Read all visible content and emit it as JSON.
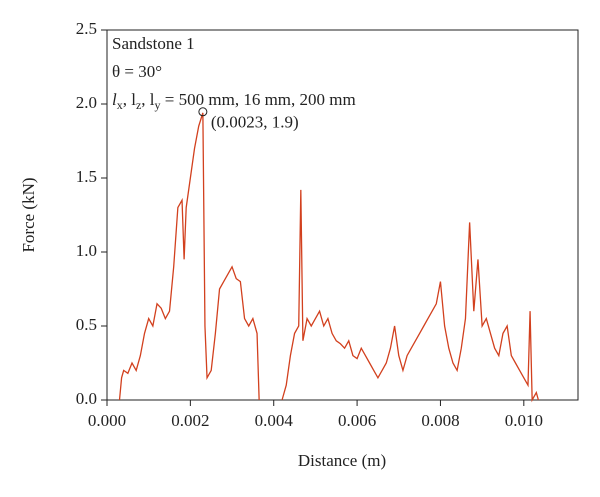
{
  "chart_data": {
    "type": "line",
    "xlabel": "Distance (m)",
    "ylabel": "Force (kN)",
    "text_lines": [
      "Sandstone 1",
      "θ = 30°"
    ],
    "text_parts": [
      "l",
      "x",
      ", l",
      "z",
      ", l",
      "y",
      " = 500 mm, 16 mm, 200 mm"
    ],
    "annotation": {
      "x": 0.0023,
      "y": 1.9,
      "label": "(0.0023, 1.9)"
    },
    "xlim": [
      0,
      0.0113
    ],
    "ylim": [
      0,
      2.5
    ],
    "xticks": [
      {
        "value": 0,
        "label": "0.000"
      },
      {
        "value": 0.002,
        "label": "0.002"
      },
      {
        "value": 0.004,
        "label": "0.004"
      },
      {
        "value": 0.006,
        "label": "0.006"
      },
      {
        "value": 0.008,
        "label": "0.008"
      },
      {
        "value": 0.01,
        "label": "0.010"
      }
    ],
    "yticks": [
      {
        "value": 0,
        "label": "0.0"
      },
      0.5,
      {
        "value": 1,
        "label": "1.0"
      },
      1.5,
      {
        "value": 2,
        "label": "2.0"
      },
      2.5
    ],
    "series": [
      {
        "color": "#d2401e",
        "x": [
          0.0003,
          0.00035,
          0.0004,
          0.0005,
          0.0006,
          0.0007,
          0.0008,
          0.0009,
          0.001,
          0.0011,
          0.0012,
          0.0013,
          0.0014,
          0.0015,
          0.0016,
          0.0017,
          0.0018,
          0.00185,
          0.0019,
          0.002,
          0.0021,
          0.0022,
          0.0023,
          0.00235,
          0.0024,
          0.0025,
          0.0026,
          0.0027,
          0.0028,
          0.0029,
          0.003,
          0.0031,
          0.0032,
          0.0033,
          0.0034,
          0.0035,
          0.0036,
          0.00365,
          0.004,
          0.0042,
          0.0043,
          0.0044,
          0.0045,
          0.0046,
          0.00465,
          0.0047,
          0.0048,
          0.0049,
          0.005,
          0.0051,
          0.0052,
          0.0053,
          0.0054,
          0.0055,
          0.0056,
          0.0057,
          0.0058,
          0.0059,
          0.006,
          0.0061,
          0.0062,
          0.0063,
          0.0064,
          0.0065,
          0.0066,
          0.0067,
          0.0068,
          0.0069,
          0.007,
          0.0071,
          0.0072,
          0.0073,
          0.0074,
          0.0075,
          0.0076,
          0.0077,
          0.0078,
          0.0079,
          0.008,
          0.0081,
          0.0082,
          0.0083,
          0.0084,
          0.0085,
          0.0086,
          0.0087,
          0.0088,
          0.0089,
          0.009,
          0.0091,
          0.0092,
          0.0093,
          0.0094,
          0.0095,
          0.0096,
          0.0097,
          0.0098,
          0.0099,
          0.01,
          0.0101,
          0.01015,
          0.0102,
          0.0103,
          0.01035
        ],
        "values": [
          0,
          0.15,
          0.2,
          0.18,
          0.25,
          0.2,
          0.3,
          0.45,
          0.55,
          0.5,
          0.65,
          0.62,
          0.55,
          0.6,
          0.9,
          1.3,
          1.35,
          0.95,
          1.3,
          1.5,
          1.7,
          1.85,
          1.94,
          0.5,
          0.15,
          0.2,
          0.45,
          0.75,
          0.8,
          0.85,
          0.9,
          0.82,
          0.8,
          0.55,
          0.5,
          0.55,
          0.45,
          0,
          null,
          0,
          0.1,
          0.3,
          0.45,
          0.5,
          1.42,
          0.4,
          0.55,
          0.5,
          0.55,
          0.6,
          0.5,
          0.55,
          0.45,
          0.4,
          0.38,
          0.35,
          0.4,
          0.3,
          0.28,
          0.35,
          0.3,
          0.25,
          0.2,
          0.15,
          0.2,
          0.25,
          0.35,
          0.5,
          0.3,
          0.2,
          0.3,
          0.35,
          0.4,
          0.45,
          0.5,
          0.55,
          0.6,
          0.65,
          0.8,
          0.5,
          0.35,
          0.25,
          0.2,
          0.35,
          0.55,
          1.2,
          0.6,
          0.95,
          0.5,
          0.55,
          0.45,
          0.35,
          0.3,
          0.45,
          0.5,
          0.3,
          0.25,
          0.2,
          0.15,
          0.1,
          0.6,
          0,
          0.05,
          0
        ]
      }
    ]
  }
}
